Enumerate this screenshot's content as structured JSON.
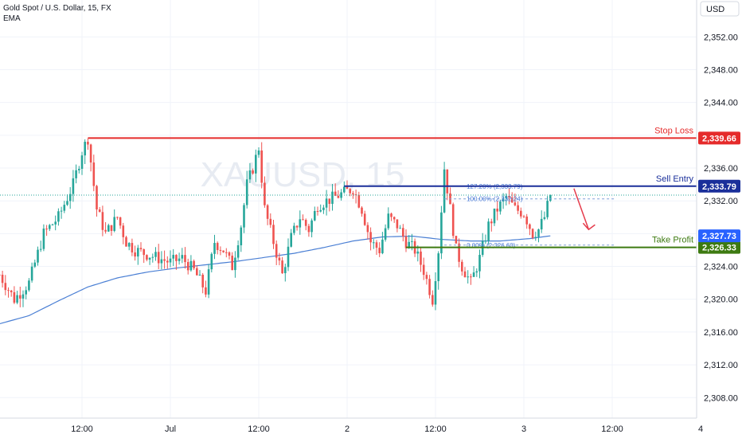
{
  "header": {
    "symbol_title": "Gold Spot / U.S. Dollar, 15, FX",
    "indicator": "EMA",
    "currency_button": "USD",
    "watermark": "XAUUSD, 15"
  },
  "colors": {
    "up": "#26a69a",
    "down": "#ef5350",
    "ema": "#4a7fd4",
    "stop_loss": "#e52b2b",
    "entry": "#1a2f9a",
    "take_profit": "#3d7a11",
    "ema_tag": "#2962ff",
    "arrow": "#e53c4c"
  },
  "chart_data": {
    "type": "candlestick",
    "symbol": "XAUUSD",
    "timeframe": "15",
    "title": "Gold Spot / U.S. Dollar, 15, FX",
    "ylim": [
      2305.5,
      2356.5
    ],
    "y_ticks": [
      "2,352.00",
      "2,348.00",
      "2,344.00",
      "2,340.00",
      "2,336.00",
      "2,332.00",
      "2,328.00",
      "2,324.00",
      "2,320.00",
      "2,316.00",
      "2,312.00",
      "2,308.00"
    ],
    "y_tick_values": [
      2352,
      2348,
      2344,
      2340,
      2336,
      2332,
      2328,
      2324,
      2320,
      2316,
      2312,
      2308
    ],
    "x_ticks": [
      {
        "label": "12:00",
        "bar": 28
      },
      {
        "label": "Jul",
        "bar": 58
      },
      {
        "label": "12:00",
        "bar": 88
      },
      {
        "label": "2",
        "bar": 118
      },
      {
        "label": "12:00",
        "bar": 148
      },
      {
        "label": "3",
        "bar": 178
      },
      {
        "label": "12:00",
        "bar": 208
      },
      {
        "label": "4",
        "bar": 238
      }
    ],
    "bars_total": 238,
    "price_path": [
      [
        0,
        2323
      ],
      [
        5,
        2320
      ],
      [
        10,
        2322
      ],
      [
        15,
        2328
      ],
      [
        20,
        2330
      ],
      [
        25,
        2334
      ],
      [
        28,
        2338
      ],
      [
        30,
        2339.66
      ],
      [
        33,
        2331
      ],
      [
        36,
        2328
      ],
      [
        40,
        2330
      ],
      [
        43,
        2327
      ],
      [
        46,
        2326
      ],
      [
        50,
        2325.5
      ],
      [
        54,
        2325
      ],
      [
        58,
        2324.5
      ],
      [
        62,
        2325
      ],
      [
        66,
        2323.5
      ],
      [
        70,
        2321
      ],
      [
        73,
        2327
      ],
      [
        76,
        2326
      ],
      [
        79,
        2324
      ],
      [
        82,
        2329
      ],
      [
        84,
        2334
      ],
      [
        86,
        2336
      ],
      [
        88,
        2338.5
      ],
      [
        90,
        2331
      ],
      [
        93,
        2327
      ],
      [
        96,
        2323
      ],
      [
        99,
        2327.5
      ],
      [
        102,
        2330
      ],
      [
        105,
        2328.5
      ],
      [
        108,
        2331.5
      ],
      [
        111,
        2332
      ],
      [
        114,
        2332.5
      ],
      [
        117,
        2333
      ],
      [
        120,
        2333.5
      ],
      [
        123,
        2331
      ],
      [
        126,
        2327
      ],
      [
        129,
        2326
      ],
      [
        132,
        2330
      ],
      [
        135,
        2329
      ],
      [
        138,
        2327
      ],
      [
        141,
        2326
      ],
      [
        144,
        2323.5
      ],
      [
        147,
        2320
      ],
      [
        149,
        2326
      ],
      [
        151,
        2336
      ],
      [
        153,
        2331
      ],
      [
        155,
        2326
      ],
      [
        157,
        2324
      ],
      [
        160,
        2322
      ],
      [
        163,
        2325
      ],
      [
        166,
        2329
      ],
      [
        169,
        2331
      ],
      [
        172,
        2332.5
      ],
      [
        175,
        2331
      ],
      [
        178,
        2330.5
      ],
      [
        181,
        2328
      ],
      [
        183,
        2328.5
      ],
      [
        185,
        2330
      ],
      [
        187,
        2332.7
      ]
    ],
    "ema_path": [
      [
        0,
        2317
      ],
      [
        10,
        2318
      ],
      [
        20,
        2319.8
      ],
      [
        30,
        2321.5
      ],
      [
        40,
        2322.6
      ],
      [
        50,
        2323.3
      ],
      [
        60,
        2323.8
      ],
      [
        70,
        2324.2
      ],
      [
        80,
        2324.6
      ],
      [
        90,
        2325.1
      ],
      [
        100,
        2325.6
      ],
      [
        110,
        2326.3
      ],
      [
        120,
        2327.1
      ],
      [
        130,
        2327.6
      ],
      [
        140,
        2327.7
      ],
      [
        150,
        2327.3
      ],
      [
        160,
        2327.1
      ],
      [
        170,
        2327.1
      ],
      [
        180,
        2327.4
      ],
      [
        187,
        2327.73
      ]
    ],
    "levels": [
      {
        "label": "Stop Loss",
        "value": 2339.66,
        "tag": "2,339.66",
        "color": "#e52b2b",
        "start_bar": 30
      },
      {
        "label": "Sell Entry",
        "value": 2333.79,
        "tag": "2,333.79",
        "color": "#1a2f9a",
        "start_bar": 117
      },
      {
        "label": "Take Profit",
        "value": 2326.33,
        "tag": "2,326.33",
        "color": "#3d7a11",
        "start_bar": 138
      }
    ],
    "ema_last": {
      "value": 2327.73,
      "tag": "2,327.73"
    },
    "fib_levels": [
      {
        "label": "127.20% (2,333.79)",
        "value": 2333.79
      },
      {
        "label": "100.00% (2,332.24)",
        "value": 2332.24
      },
      {
        "label": "0.00% (2,326.60)",
        "value": 2326.6
      }
    ],
    "fib_start_bar": 151,
    "fib_end_bar": 209,
    "current_price": 2332.7,
    "forecast_arrow": {
      "from_bar": 195,
      "from_value": 2333.5,
      "to_bar": 200,
      "to_value": 2328.5
    }
  }
}
